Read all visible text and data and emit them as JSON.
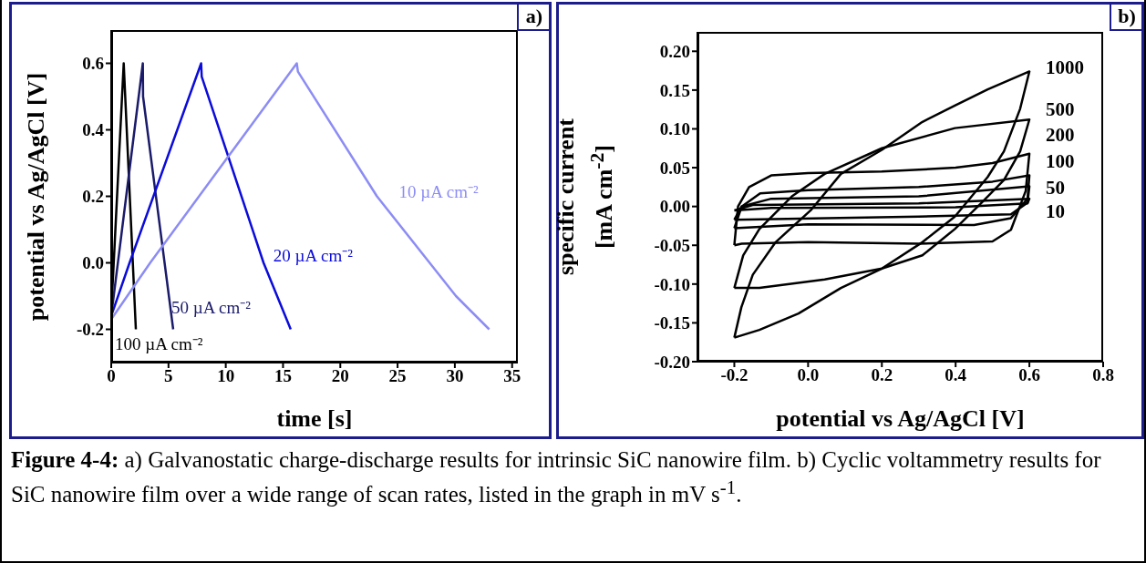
{
  "chart_data": [
    {
      "type": "line",
      "xlabel": "time [s]",
      "ylabel": "potential vs Ag/AgCl [V]",
      "xlim": [
        0,
        35.5
      ],
      "xticks": [
        0,
        5,
        10,
        15,
        20,
        25,
        30,
        35
      ],
      "ylim": [
        -0.3,
        0.7
      ],
      "yticks": [
        {
          "value": -0.2,
          "label": "-0.2"
        },
        {
          "value": 0,
          "label": "0.0"
        },
        {
          "value": 0.2,
          "label": "0.2"
        },
        {
          "value": 0.4,
          "label": "0.4"
        },
        {
          "value": 0.6,
          "label": "0.6"
        }
      ],
      "marker": "none",
      "line_style": "solid",
      "annotations": [
        "a)",
        "Figure 4-4: a) Galvanostatic charge-discharge results for intrinsic SiC nanowire film. b) Cyclic voltammetry results for SiC nanowire film over a wide range of scan rates, listed in the graph in mV s$^{-1}$."
      ],
      "series": [
        {
          "name": "100 µA cm⁻²",
          "color": "#000000",
          "x": [
            0,
            1.09,
            2.15
          ],
          "values": [
            -0.15,
            0.6,
            -0.2
          ]
        },
        {
          "name": "50 µA cm⁻²",
          "color": "#1b1b6b",
          "x": [
            0,
            2.76,
            2.78,
            5.41
          ],
          "values": [
            -0.16,
            0.6,
            0.5,
            -0.2
          ]
        },
        {
          "name": "20 µA cm⁻²",
          "color": "#0b0bdb",
          "x": [
            0,
            1.6,
            7.85,
            7.9,
            13.3,
            15.67
          ],
          "values": [
            -0.16,
            0,
            0.6,
            0.56,
            0,
            -0.2
          ]
        },
        {
          "name": "10 µA cm⁻²",
          "color": "#8c8cf5",
          "x": [
            0,
            3.4,
            16.2,
            16.3,
            23.2,
            27.8,
            30.1,
            33
          ],
          "values": [
            -0.17,
            0,
            0.6,
            0.575,
            0.2,
            0,
            -0.1,
            -0.2
          ]
        }
      ]
    },
    {
      "type": "line",
      "xlabel": "potential vs Ag/AgCl [V]",
      "ylabel": "specific current [mA cm$^{-2}$]",
      "xlim": [
        -0.3,
        0.8
      ],
      "xticks": [
        -0.2,
        {
          "value": 0,
          "label": "0.0"
        },
        0.2,
        0.4,
        0.6,
        0.8
      ],
      "ylim": [
        -0.2,
        0.225
      ],
      "yticks": [
        {
          "value": -0.2,
          "label": "-0.20"
        },
        -0.15,
        {
          "value": -0.1,
          "label": "-0.10"
        },
        -0.05,
        {
          "value": 0,
          "label": "0.00"
        },
        0.05,
        {
          "value": 0.1,
          "label": "0.10"
        },
        0.15,
        {
          "value": 0.2,
          "label": "0.20"
        }
      ],
      "annotations": [
        "b)",
        "1000",
        "500",
        "200",
        "100",
        "50",
        "10"
      ]
    }
  ]
}
